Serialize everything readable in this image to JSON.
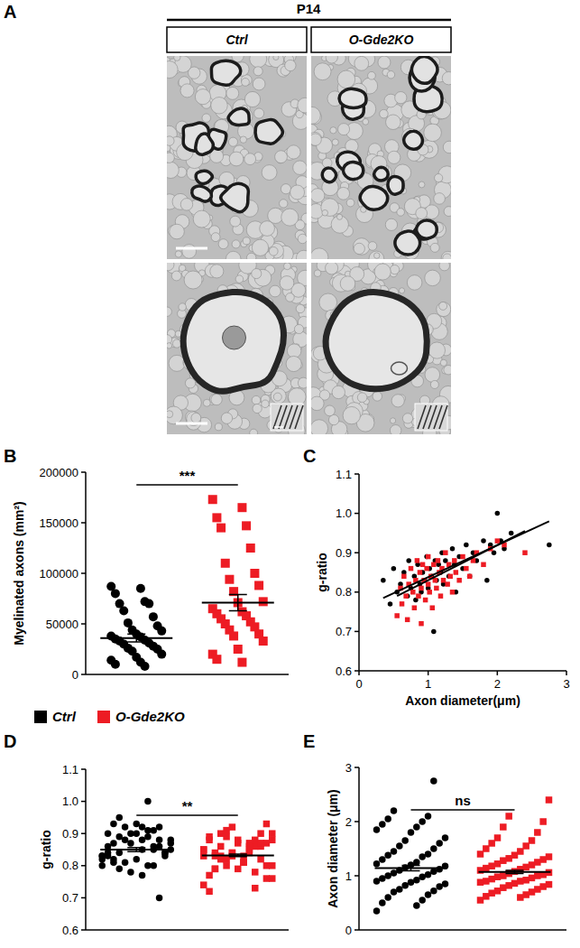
{
  "panel_labels": [
    "A",
    "B",
    "C",
    "D",
    "E"
  ],
  "panel_a": {
    "title": "P14",
    "columns": [
      "Ctrl",
      "O-Gde2KO"
    ]
  },
  "chart_data": [
    {
      "type": "dot",
      "ylabel": "Myelinated axons (mm²)",
      "ylim": [
        0,
        200000
      ],
      "yticks": [
        0,
        50000,
        100000,
        150000,
        200000
      ],
      "tick_labels": "y",
      "series": [
        {
          "name": "Ctrl",
          "color": "#000000",
          "marker": "circle",
          "values": [
            87000,
            85000,
            80000,
            72000,
            70000,
            70000,
            63000,
            57000,
            51000,
            48000,
            44000,
            43000,
            40000,
            38000,
            37000,
            35000,
            34000,
            33000,
            31000,
            30000,
            28000,
            26000,
            25000,
            23000,
            20000,
            17000,
            14000,
            12000,
            10000,
            8000
          ],
          "mean": 36000,
          "error": 3900
        },
        {
          "name": "O-Gde2KO",
          "color": "#ed1c24",
          "marker": "square",
          "values": [
            173000,
            165000,
            155000,
            147000,
            145000,
            125000,
            110000,
            100000,
            94000,
            88000,
            82000,
            72000,
            71000,
            65000,
            62000,
            60000,
            58000,
            55000,
            52000,
            50000,
            47000,
            44000,
            40000,
            38000,
            33000,
            25000,
            20000,
            12000,
            15000
          ],
          "mean": 71000,
          "error": 8000
        }
      ],
      "annotations": [
        {
          "text": "***"
        }
      ]
    },
    {
      "type": "scatter",
      "xlabel": "Axon diameter(μm)",
      "ylabel": "g-ratio",
      "xlim": [
        0,
        3
      ],
      "xticks": [
        0,
        1,
        2,
        3
      ],
      "ylim": [
        0.6,
        1.1
      ],
      "yticks": [
        0.6,
        0.7,
        0.8,
        0.9,
        {
          "value": 1,
          "label": "1.0"
        },
        1.1
      ],
      "series": [
        {
          "color": "#000000",
          "marker": "circle",
          "x": [
            0.35,
            0.45,
            0.5,
            0.55,
            0.6,
            0.65,
            0.7,
            0.72,
            0.75,
            0.8,
            0.82,
            0.85,
            0.88,
            0.9,
            0.92,
            0.95,
            0.98,
            1.0,
            1.02,
            1.05,
            1.08,
            1.1,
            1.12,
            1.15,
            1.18,
            1.2,
            1.22,
            1.25,
            1.3,
            1.35,
            1.38,
            1.4,
            1.45,
            1.5,
            1.55,
            1.6,
            1.65,
            1.7,
            1.8,
            1.85,
            1.9,
            1.95,
            2.0,
            2.05,
            2.1,
            2.2,
            2.75
          ],
          "values": [
            0.83,
            0.77,
            0.86,
            0.8,
            0.82,
            0.85,
            0.79,
            0.88,
            0.81,
            0.84,
            0.78,
            0.87,
            0.82,
            0.8,
            0.85,
            0.83,
            0.89,
            0.81,
            0.86,
            0.84,
            0.7,
            0.88,
            0.83,
            0.87,
            0.85,
            0.9,
            0.82,
            0.88,
            0.84,
            0.91,
            0.87,
            0.8,
            0.89,
            0.86,
            0.92,
            0.84,
            0.9,
            0.88,
            0.93,
            0.83,
            0.92,
            0.9,
            1.0,
            0.93,
            0.91,
            0.95,
            0.92
          ]
        },
        {
          "color": "#ed1c24",
          "marker": "square",
          "x": [
            0.55,
            0.6,
            0.62,
            0.65,
            0.68,
            0.7,
            0.72,
            0.75,
            0.78,
            0.8,
            0.82,
            0.84,
            0.86,
            0.88,
            0.9,
            0.9,
            0.92,
            0.94,
            0.96,
            0.98,
            1.0,
            1.0,
            1.02,
            1.04,
            1.06,
            1.08,
            1.1,
            1.12,
            1.14,
            1.16,
            1.18,
            1.2,
            1.22,
            1.25,
            1.28,
            1.3,
            1.32,
            1.35,
            1.38,
            1.4,
            1.45,
            1.5,
            1.55,
            1.6,
            1.65,
            1.7,
            1.8,
            1.9,
            2.0,
            2.1,
            2.4
          ],
          "values": [
            0.74,
            0.81,
            0.77,
            0.84,
            0.79,
            0.73,
            0.82,
            0.86,
            0.8,
            0.76,
            0.83,
            0.88,
            0.79,
            0.85,
            0.81,
            0.72,
            0.87,
            0.83,
            0.78,
            0.86,
            0.82,
            0.89,
            0.8,
            0.84,
            0.76,
            0.87,
            0.83,
            0.81,
            0.88,
            0.85,
            0.79,
            0.86,
            0.83,
            0.9,
            0.82,
            0.87,
            0.84,
            0.8,
            0.88,
            0.85,
            0.83,
            0.89,
            0.86,
            0.84,
            0.88,
            0.9,
            0.87,
            0.91,
            0.93,
            0.92,
            0.9
          ]
        },
        {
          "type": "line",
          "color": "#000000",
          "x": [
            0.35,
            2.75
          ],
          "values": [
            0.785,
            0.98
          ]
        },
        {
          "type": "line",
          "color": "#000000",
          "x": [
            0.55,
            2.4
          ],
          "values": [
            0.79,
            0.955
          ]
        }
      ]
    },
    {
      "type": "dot",
      "ylabel": "g-ratio",
      "ylim": [
        0.6,
        1.1
      ],
      "yticks": [
        0.6,
        0.7,
        0.8,
        0.9,
        {
          "value": 1,
          "label": "1.0"
        },
        1.1
      ],
      "tick_labels": "y",
      "series": [
        {
          "color": "#000000",
          "marker": "circle",
          "values": [
            0.83,
            0.77,
            0.86,
            0.8,
            0.82,
            0.85,
            0.79,
            0.88,
            0.81,
            0.84,
            0.78,
            0.87,
            0.82,
            0.8,
            0.85,
            0.83,
            0.89,
            0.81,
            0.86,
            0.84,
            0.7,
            0.88,
            0.83,
            0.87,
            0.85,
            0.9,
            0.82,
            0.88,
            0.84,
            0.91,
            0.87,
            0.8,
            0.89,
            0.86,
            0.92,
            0.84,
            0.9,
            0.88,
            0.93,
            0.83,
            0.92,
            0.9,
            1.0,
            0.93,
            0.91,
            0.95,
            0.92
          ],
          "mean": 0.85,
          "error": 0.006
        },
        {
          "color": "#ed1c24",
          "marker": "square",
          "values": [
            0.74,
            0.81,
            0.77,
            0.84,
            0.79,
            0.73,
            0.82,
            0.86,
            0.8,
            0.76,
            0.83,
            0.88,
            0.79,
            0.85,
            0.81,
            0.72,
            0.87,
            0.83,
            0.78,
            0.86,
            0.82,
            0.89,
            0.8,
            0.84,
            0.76,
            0.87,
            0.83,
            0.81,
            0.88,
            0.85,
            0.79,
            0.86,
            0.83,
            0.9,
            0.82,
            0.87,
            0.84,
            0.8,
            0.88,
            0.85,
            0.83,
            0.89,
            0.86,
            0.84,
            0.88,
            0.9,
            0.87,
            0.91,
            0.93,
            0.92,
            0.9
          ],
          "mean": 0.832,
          "error": 0.004
        }
      ],
      "annotations": [
        {
          "text": "**"
        }
      ]
    },
    {
      "type": "dot",
      "ylabel": "Axon diameter (μm)",
      "ylim": [
        0,
        3
      ],
      "yticks": [
        0,
        1,
        2,
        3
      ],
      "tick_labels": "y",
      "series": [
        {
          "color": "#000000",
          "marker": "circle",
          "values": [
            0.35,
            0.45,
            0.5,
            0.55,
            0.6,
            0.65,
            0.7,
            0.72,
            0.75,
            0.8,
            0.82,
            0.85,
            0.88,
            0.9,
            0.92,
            0.95,
            0.98,
            1.0,
            1.02,
            1.05,
            1.08,
            1.1,
            1.12,
            1.15,
            1.18,
            1.2,
            1.22,
            1.25,
            1.3,
            1.35,
            1.38,
            1.4,
            1.45,
            1.5,
            1.55,
            1.6,
            1.65,
            1.7,
            1.8,
            1.85,
            1.9,
            1.95,
            2.0,
            2.05,
            2.1,
            2.2,
            2.75
          ],
          "mean": 1.14,
          "error": 0.05
        },
        {
          "color": "#ed1c24",
          "marker": "square",
          "values": [
            0.55,
            0.6,
            0.62,
            0.65,
            0.68,
            0.7,
            0.72,
            0.75,
            0.78,
            0.8,
            0.82,
            0.84,
            0.86,
            0.88,
            0.9,
            0.9,
            0.92,
            0.94,
            0.96,
            0.98,
            1.0,
            1.0,
            1.02,
            1.04,
            1.06,
            1.08,
            1.1,
            1.12,
            1.14,
            1.16,
            1.18,
            1.2,
            1.22,
            1.25,
            1.28,
            1.3,
            1.32,
            1.35,
            1.38,
            1.4,
            1.45,
            1.5,
            1.55,
            1.6,
            1.65,
            1.7,
            1.8,
            1.9,
            2.0,
            2.1,
            2.4
          ],
          "mean": 1.07,
          "error": 0.03
        }
      ],
      "annotations": [
        {
          "text": "ns"
        }
      ]
    }
  ]
}
